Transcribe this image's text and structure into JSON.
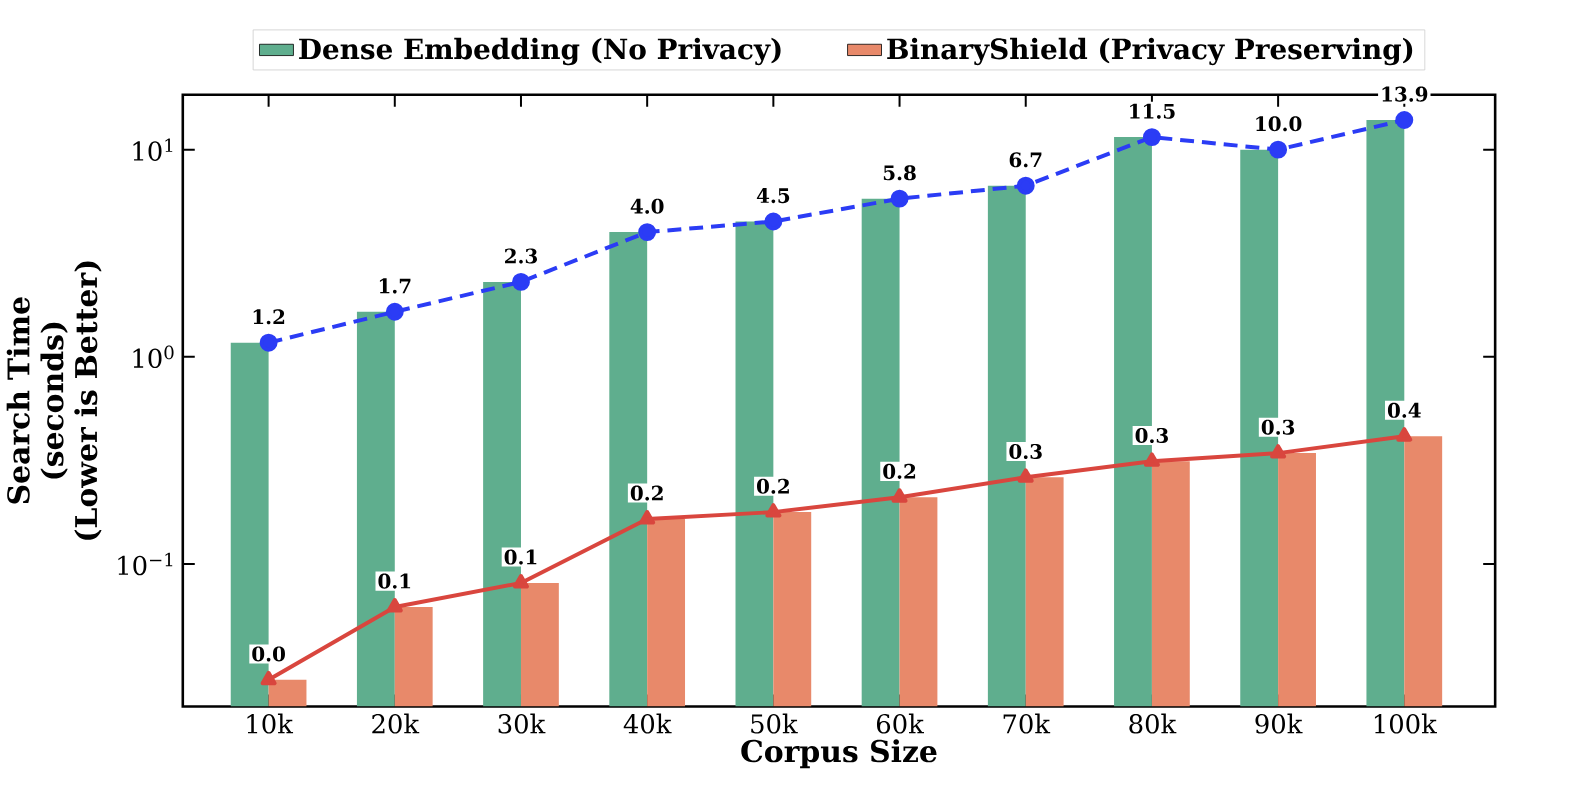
{
  "chart_data": {
    "type": "bar",
    "log": true,
    "xlabel": "Corpus Size",
    "ylabel": "Search Time (seconds) (Lower is Better)",
    "legend": "top",
    "categories": [
      "10k",
      "20k",
      "30k",
      "40k",
      "50k",
      "60k",
      "70k",
      "80k",
      "90k",
      "100k"
    ],
    "ylim": [
      0.0205,
      18.4
    ],
    "yticks": [
      {
        "value": 0.1,
        "label": "10$^{−1}$"
      },
      {
        "value": 1,
        "label": "10$^{0}$"
      },
      {
        "value": 10,
        "label": "10$^{1}$"
      }
    ],
    "series": [
      {
        "name": "Dense Embedding (No Privacy)",
        "color": "#5fae8e",
        "values": [
          1.17,
          1.65,
          2.3,
          4.0,
          4.5,
          5.8,
          6.7,
          11.5,
          10.0,
          13.9
        ],
        "value_labels": [
          "1.2",
          "1.7",
          "2.3",
          "4.0",
          "4.5",
          "5.8",
          "6.7",
          "11.5",
          "10.0",
          "13.9"
        ]
      },
      {
        "name": "BinaryShield (Privacy Preserving)",
        "color": "#e8896a",
        "values": [
          0.0276,
          0.062,
          0.081,
          0.165,
          0.178,
          0.21,
          0.262,
          0.313,
          0.343,
          0.414
        ],
        "value_labels": [
          "0.0",
          "0.1",
          "0.1",
          "0.2",
          "0.2",
          "0.2",
          "0.3",
          "0.3",
          "0.3",
          "0.4"
        ]
      },
      {
        "type": "line",
        "color": "#2b3cf5",
        "marker": "circle",
        "line_style": "dashed",
        "values": [
          1.17,
          1.65,
          2.3,
          4.0,
          4.5,
          5.8,
          6.7,
          11.5,
          10.0,
          13.9
        ]
      },
      {
        "type": "line",
        "color": "#d9463e",
        "marker": "triangle",
        "line_style": "solid",
        "values": [
          0.0276,
          0.062,
          0.081,
          0.165,
          0.178,
          0.21,
          0.262,
          0.313,
          0.343,
          0.414
        ]
      }
    ]
  }
}
